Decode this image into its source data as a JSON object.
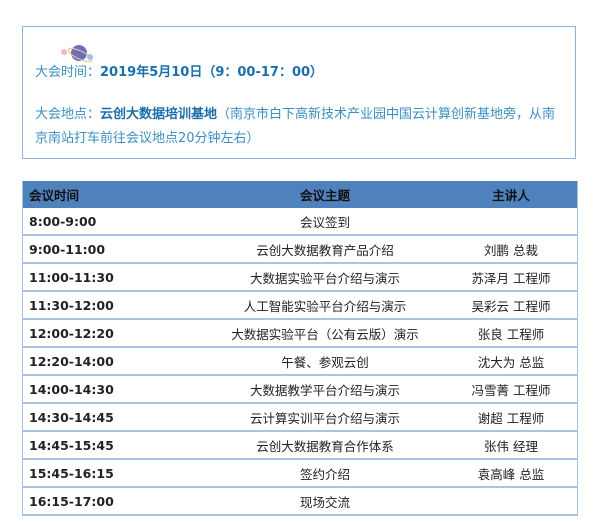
{
  "info": {
    "time_label": "大会时间：",
    "time_value": "2019年5月10日（9：00-17：00）",
    "place_label": "大会地点：",
    "place_value": "云创大数据培训基地",
    "place_note": "（南京市白下高新技术产业园中国云计算创新基地旁，从南京南站打车前往会议地点20分钟左右）"
  },
  "table": {
    "headers": [
      "会议时间",
      "会议主题",
      "主讲人"
    ],
    "rows": [
      [
        "8:00-9:00",
        "会议签到",
        ""
      ],
      [
        "9:00-11:00",
        "云创大数据教育产品介绍",
        "刘鹏 总裁"
      ],
      [
        "11:00-11:30",
        "大数据实验平台介绍与演示",
        "苏泽月 工程师"
      ],
      [
        "11:30-12:00",
        "人工智能实验平台介绍与演示",
        "吴彩云 工程师"
      ],
      [
        "12:00-12:20",
        "大数据实验平台（公有云版）演示",
        "张良 工程师"
      ],
      [
        "12:20-14:00",
        "午餐、参观云创",
        "沈大为 总监"
      ],
      [
        "14:00-14:30",
        "大数据教学平台介绍与演示",
        "冯雪菁 工程师"
      ],
      [
        "14:30-14:45",
        "云计算实训平台介绍与演示",
        "谢超 工程师"
      ],
      [
        "14:45-15:45",
        "云创大数据教育合作体系",
        "张伟 经理"
      ],
      [
        "15:45-16:15",
        "签约介绍",
        "袁高峰 总监"
      ],
      [
        "16:15-17:00",
        "现场交流",
        ""
      ]
    ]
  }
}
